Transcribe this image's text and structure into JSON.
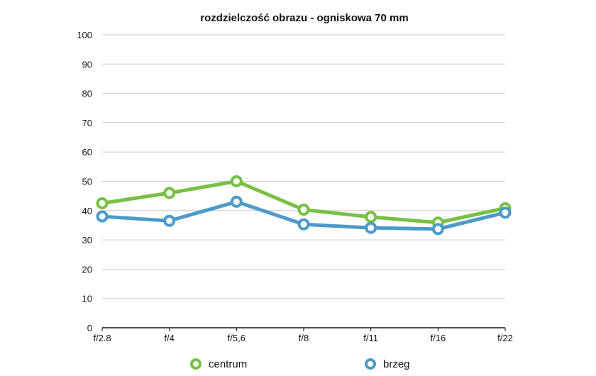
{
  "chart_data": {
    "type": "line",
    "title": "rozdzielczość obrazu - ogniskowa 70 mm",
    "xlabel": "",
    "ylabel": "",
    "categories": [
      "f/2.8",
      "f/4",
      "f/5,6",
      "f/8",
      "f/11",
      "f/16",
      "f/22"
    ],
    "ylim": [
      0,
      100
    ],
    "yticks": [
      0,
      10,
      20,
      30,
      40,
      50,
      60,
      70,
      80,
      90,
      100
    ],
    "grid": true,
    "legend": "bottom",
    "series": [
      {
        "name": "centrum",
        "color": "#77c043",
        "values": [
          42.5,
          46,
          50,
          40.3,
          37.8,
          35.9,
          40.8
        ]
      },
      {
        "name": "brzeg",
        "color": "#4d9ac9",
        "values": [
          38,
          36.5,
          43,
          35.3,
          34.1,
          33.7,
          39.3
        ]
      }
    ]
  }
}
